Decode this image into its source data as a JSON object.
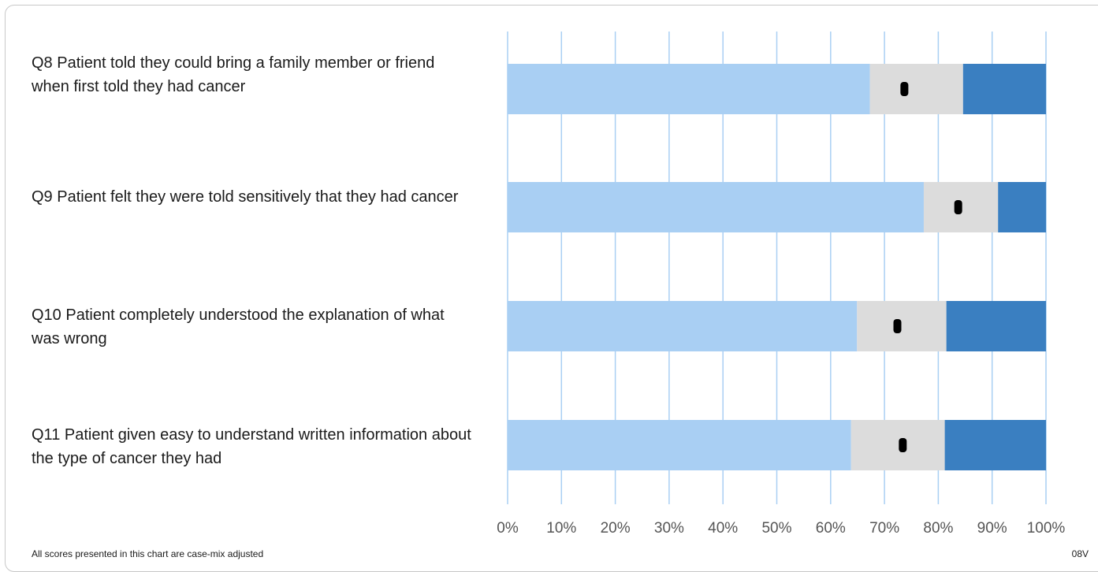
{
  "chart_data": {
    "type": "bar",
    "orientation": "horizontal",
    "stacked": true,
    "categories": [
      "Q8 Patient told they could bring a family member or friend when first told they had cancer",
      "Q9 Patient felt they were told sensitively that they had cancer",
      "Q10 Patient completely understood the explanation of what was wrong",
      "Q11 Patient given easy to understand written information about the type of cancer they had"
    ],
    "segments": [
      {
        "color": "#a9cff3",
        "values": [
          67.3,
          77.3,
          64.9,
          63.8
        ]
      },
      {
        "color": "#dcdcdc",
        "values": [
          17.3,
          13.8,
          16.6,
          17.4
        ]
      },
      {
        "color": "#3a7fc1",
        "values": [
          15.4,
          8.9,
          18.5,
          18.8
        ]
      }
    ],
    "markers": [
      73.7,
      83.7,
      72.4,
      73.4
    ],
    "marker_color": "#000000",
    "xaxis": {
      "range": [
        0,
        100
      ],
      "ticks": [
        0,
        10,
        20,
        30,
        40,
        50,
        60,
        70,
        80,
        90,
        100
      ],
      "tick_labels": [
        "0%",
        "10%",
        "20%",
        "30%",
        "40%",
        "50%",
        "60%",
        "70%",
        "80%",
        "90%",
        "100%"
      ]
    },
    "gridlines": true,
    "gridline_color": "#a9cff3",
    "title": "",
    "xlabel": "",
    "ylabel": ""
  },
  "footnote": "All scores presented in this chart are case-mix adjusted",
  "code": "08V"
}
